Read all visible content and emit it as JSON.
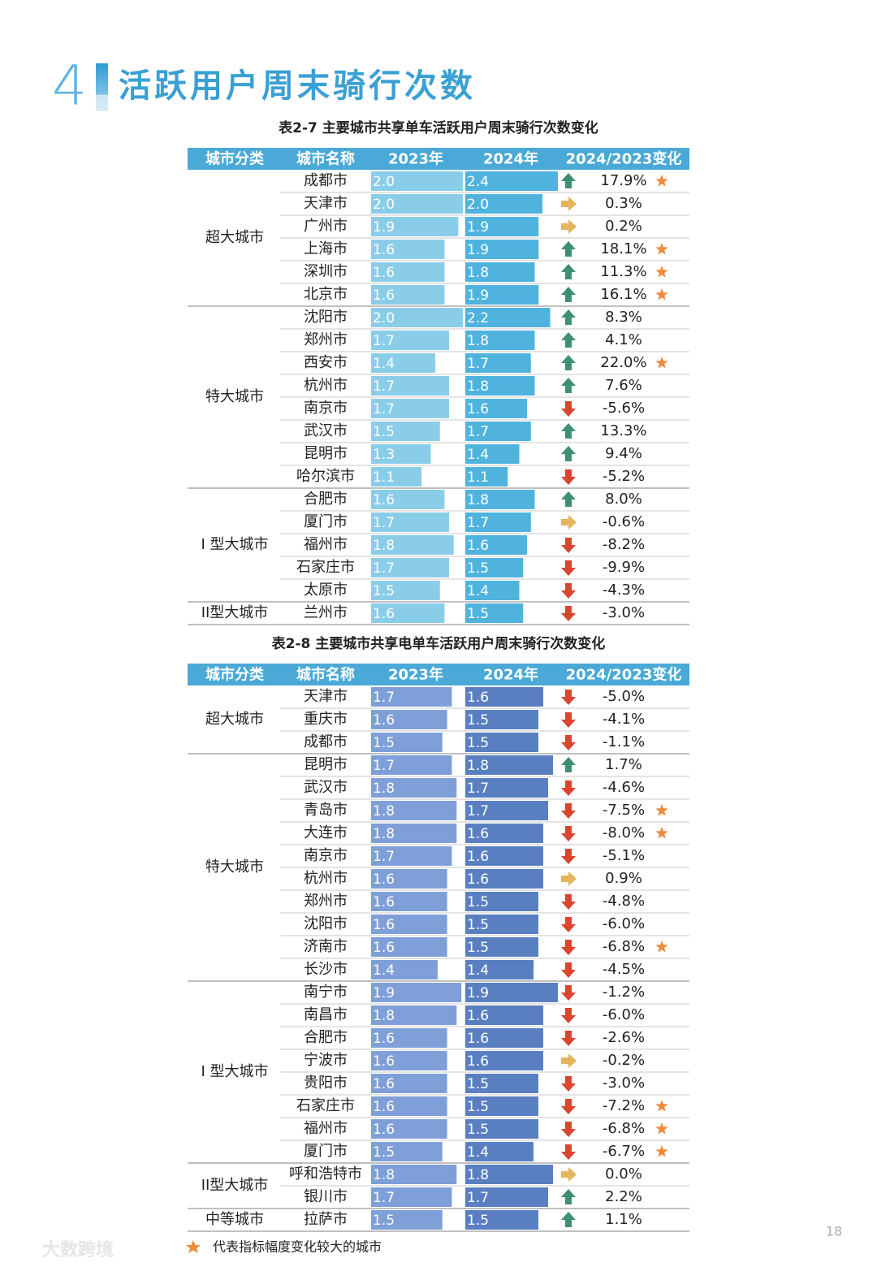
{
  "header": {
    "number": "4",
    "title": "活跃用户周末骑行次数"
  },
  "tables": [
    {
      "title": "表2-7 主要城市共享单车活跃用户周末骑行次数变化",
      "columns": [
        "城市分类",
        "城市名称",
        "2023年",
        "2024年",
        "2024/2023变化"
      ],
      "colors": {
        "header": "#4aa9d6",
        "bar2023": "#8acde9",
        "bar2024": "#4fb3de"
      },
      "groups": [
        {
          "category": "超大城市",
          "rows": [
            {
              "city": "成都市",
              "v2023": "2.0",
              "v2024": "2.4",
              "change": "17.9%",
              "trend": "up",
              "star": true
            },
            {
              "city": "天津市",
              "v2023": "2.0",
              "v2024": "2.0",
              "change": "0.3%",
              "trend": "flat",
              "star": false
            },
            {
              "city": "广州市",
              "v2023": "1.9",
              "v2024": "1.9",
              "change": "0.2%",
              "trend": "flat",
              "star": false
            },
            {
              "city": "上海市",
              "v2023": "1.6",
              "v2024": "1.9",
              "change": "18.1%",
              "trend": "up",
              "star": true
            },
            {
              "city": "深圳市",
              "v2023": "1.6",
              "v2024": "1.8",
              "change": "11.3%",
              "trend": "up",
              "star": true
            },
            {
              "city": "北京市",
              "v2023": "1.6",
              "v2024": "1.9",
              "change": "16.1%",
              "trend": "up",
              "star": true
            }
          ]
        },
        {
          "category": "特大城市",
          "rows": [
            {
              "city": "沈阳市",
              "v2023": "2.0",
              "v2024": "2.2",
              "change": "8.3%",
              "trend": "up",
              "star": false
            },
            {
              "city": "郑州市",
              "v2023": "1.7",
              "v2024": "1.8",
              "change": "4.1%",
              "trend": "up",
              "star": false
            },
            {
              "city": "西安市",
              "v2023": "1.4",
              "v2024": "1.7",
              "change": "22.0%",
              "trend": "up",
              "star": true
            },
            {
              "city": "杭州市",
              "v2023": "1.7",
              "v2024": "1.8",
              "change": "7.6%",
              "trend": "up",
              "star": false
            },
            {
              "city": "南京市",
              "v2023": "1.7",
              "v2024": "1.6",
              "change": "-5.6%",
              "trend": "down",
              "star": false
            },
            {
              "city": "武汉市",
              "v2023": "1.5",
              "v2024": "1.7",
              "change": "13.3%",
              "trend": "up",
              "star": false
            },
            {
              "city": "昆明市",
              "v2023": "1.3",
              "v2024": "1.4",
              "change": "9.4%",
              "trend": "up",
              "star": false
            },
            {
              "city": "哈尔滨市",
              "v2023": "1.1",
              "v2024": "1.1",
              "change": "-5.2%",
              "trend": "down",
              "star": false
            }
          ]
        },
        {
          "category": "I 型大城市",
          "rows": [
            {
              "city": "合肥市",
              "v2023": "1.6",
              "v2024": "1.8",
              "change": "8.0%",
              "trend": "up",
              "star": false
            },
            {
              "city": "厦门市",
              "v2023": "1.7",
              "v2024": "1.7",
              "change": "-0.6%",
              "trend": "flat",
              "star": false
            },
            {
              "city": "福州市",
              "v2023": "1.8",
              "v2024": "1.6",
              "change": "-8.2%",
              "trend": "down",
              "star": false
            },
            {
              "city": "石家庄市",
              "v2023": "1.7",
              "v2024": "1.5",
              "change": "-9.9%",
              "trend": "down",
              "star": false
            },
            {
              "city": "太原市",
              "v2023": "1.5",
              "v2024": "1.4",
              "change": "-4.3%",
              "trend": "down",
              "star": false
            }
          ]
        },
        {
          "category": "II型大城市",
          "rows": [
            {
              "city": "兰州市",
              "v2023": "1.6",
              "v2024": "1.5",
              "change": "-3.0%",
              "trend": "down",
              "star": false
            }
          ]
        }
      ]
    },
    {
      "title": "表2-8 主要城市共享电单车活跃用户周末骑行次数变化",
      "columns": [
        "城市分类",
        "城市名称",
        "2023年",
        "2024年",
        "2024/2023变化"
      ],
      "colors": {
        "header": "#4aa9d6",
        "bar2023": "#7f9fd8",
        "bar2024": "#5a7fc1"
      },
      "groups": [
        {
          "category": "超大城市",
          "rows": [
            {
              "city": "天津市",
              "v2023": "1.7",
              "v2024": "1.6",
              "change": "-5.0%",
              "trend": "down",
              "star": false
            },
            {
              "city": "重庆市",
              "v2023": "1.6",
              "v2024": "1.5",
              "change": "-4.1%",
              "trend": "down",
              "star": false
            },
            {
              "city": "成都市",
              "v2023": "1.5",
              "v2024": "1.5",
              "change": "-1.1%",
              "trend": "down",
              "star": false
            }
          ]
        },
        {
          "category": "特大城市",
          "rows": [
            {
              "city": "昆明市",
              "v2023": "1.7",
              "v2024": "1.8",
              "change": "1.7%",
              "trend": "up",
              "star": false
            },
            {
              "city": "武汉市",
              "v2023": "1.8",
              "v2024": "1.7",
              "change": "-4.6%",
              "trend": "down",
              "star": false
            },
            {
              "city": "青岛市",
              "v2023": "1.8",
              "v2024": "1.7",
              "change": "-7.5%",
              "trend": "down",
              "star": true
            },
            {
              "city": "大连市",
              "v2023": "1.8",
              "v2024": "1.6",
              "change": "-8.0%",
              "trend": "down",
              "star": true
            },
            {
              "city": "南京市",
              "v2023": "1.7",
              "v2024": "1.6",
              "change": "-5.1%",
              "trend": "down",
              "star": false
            },
            {
              "city": "杭州市",
              "v2023": "1.6",
              "v2024": "1.6",
              "change": "0.9%",
              "trend": "flat",
              "star": false
            },
            {
              "city": "郑州市",
              "v2023": "1.6",
              "v2024": "1.5",
              "change": "-4.8%",
              "trend": "down",
              "star": false
            },
            {
              "city": "沈阳市",
              "v2023": "1.6",
              "v2024": "1.5",
              "change": "-6.0%",
              "trend": "down",
              "star": false
            },
            {
              "city": "济南市",
              "v2023": "1.6",
              "v2024": "1.5",
              "change": "-6.8%",
              "trend": "down",
              "star": true
            },
            {
              "city": "长沙市",
              "v2023": "1.4",
              "v2024": "1.4",
              "change": "-4.5%",
              "trend": "down",
              "star": false
            }
          ]
        },
        {
          "category": "I 型大城市",
          "rows": [
            {
              "city": "南宁市",
              "v2023": "1.9",
              "v2024": "1.9",
              "change": "-1.2%",
              "trend": "down",
              "star": false
            },
            {
              "city": "南昌市",
              "v2023": "1.8",
              "v2024": "1.6",
              "change": "-6.0%",
              "trend": "down",
              "star": false
            },
            {
              "city": "合肥市",
              "v2023": "1.6",
              "v2024": "1.6",
              "change": "-2.6%",
              "trend": "down",
              "star": false
            },
            {
              "city": "宁波市",
              "v2023": "1.6",
              "v2024": "1.6",
              "change": "-0.2%",
              "trend": "flat",
              "star": false
            },
            {
              "city": "贵阳市",
              "v2023": "1.6",
              "v2024": "1.5",
              "change": "-3.0%",
              "trend": "down",
              "star": false
            },
            {
              "city": "石家庄市",
              "v2023": "1.6",
              "v2024": "1.5",
              "change": "-7.2%",
              "trend": "down",
              "star": true
            },
            {
              "city": "福州市",
              "v2023": "1.6",
              "v2024": "1.5",
              "change": "-6.8%",
              "trend": "down",
              "star": true
            },
            {
              "city": "厦门市",
              "v2023": "1.5",
              "v2024": "1.4",
              "change": "-6.7%",
              "trend": "down",
              "star": true
            }
          ]
        },
        {
          "category": "II型大城市",
          "rows": [
            {
              "city": "呼和浩特市",
              "v2023": "1.8",
              "v2024": "1.8",
              "change": "0.0%",
              "trend": "flat",
              "star": false
            },
            {
              "city": "银川市",
              "v2023": "1.7",
              "v2024": "1.7",
              "change": "2.2%",
              "trend": "up",
              "star": false
            }
          ]
        },
        {
          "category": "中等城市",
          "rows": [
            {
              "city": "拉萨市",
              "v2023": "1.5",
              "v2024": "1.5",
              "change": "1.1%",
              "trend": "up",
              "star": false
            }
          ]
        }
      ]
    }
  ],
  "footnote": "代表指标幅度变化较大的城市",
  "page_number": "18",
  "watermark": "大数跨境"
}
